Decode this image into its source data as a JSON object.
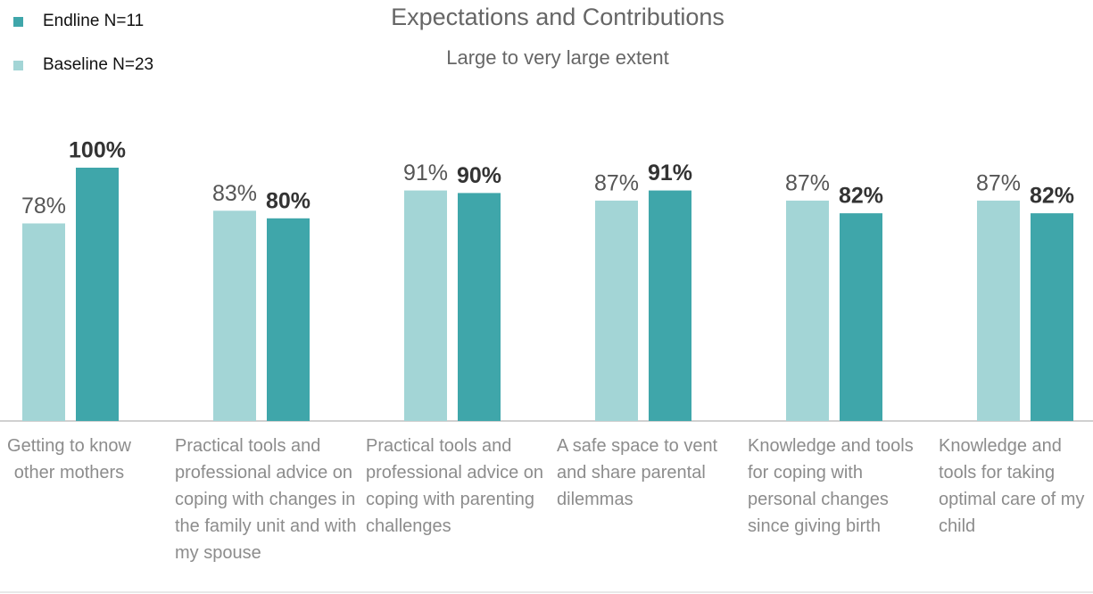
{
  "chart_data": {
    "type": "bar",
    "title": "Expectations and Contributions",
    "subtitle": "Large to very large extent",
    "categories": [
      "Getting to know other mothers",
      "Practical tools and professional advice on coping with changes in the family unit and with my spouse",
      "Practical tools and professional advice on coping with parenting challenges",
      "A safe space to vent and share parental dilemmas",
      "Knowledge and tools for coping with personal changes since giving birth",
      "Knowledge and tools for taking optimal care of my child"
    ],
    "series": [
      {
        "name": "Baseline N=23",
        "color": "#a3d5d6",
        "values": [
          78,
          83,
          91,
          87,
          87,
          87
        ],
        "value_labels": [
          "78%",
          "83%",
          "91%",
          "87%",
          "87%",
          "87%"
        ]
      },
      {
        "name": "Endline N=11",
        "color": "#3fa6aa",
        "values": [
          100,
          80,
          90,
          91,
          82,
          82
        ],
        "value_labels": [
          "100%",
          "80%",
          "90%",
          "91%",
          "82%",
          "82%"
        ]
      }
    ],
    "ylim": [
      0,
      100
    ]
  }
}
